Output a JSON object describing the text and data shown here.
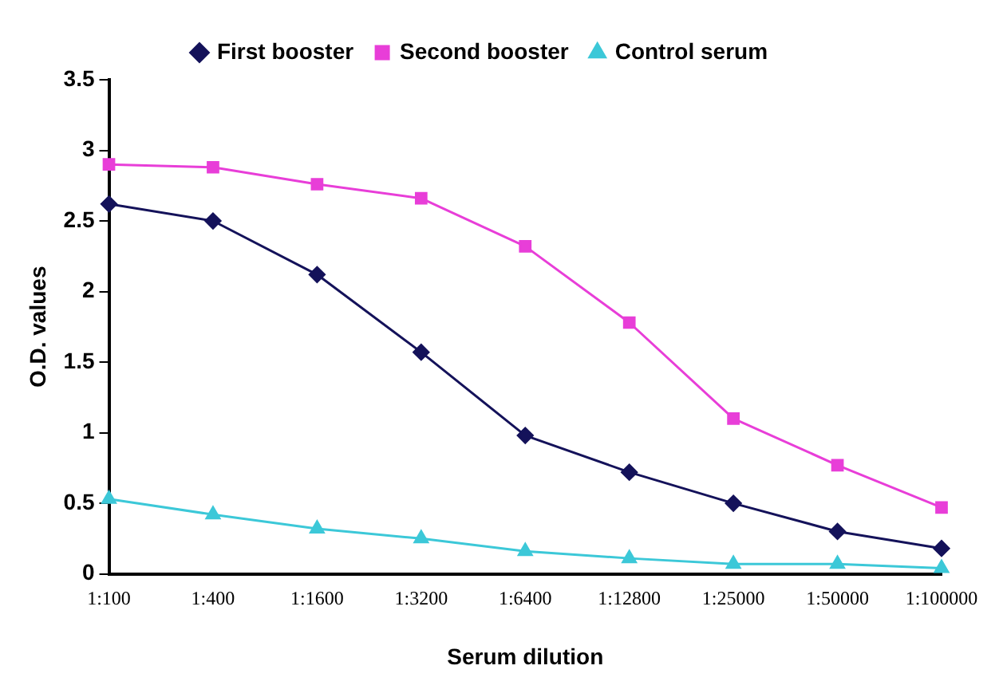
{
  "chart_data": {
    "type": "line",
    "xlabel": "Serum dilution",
    "ylabel": "O.D. values",
    "categories": [
      "1:100",
      "1:400",
      "1:1600",
      "1:3200",
      "1:6400",
      "1:12800",
      "1:25000",
      "1:50000",
      "1:100000"
    ],
    "series": [
      {
        "name": "First booster",
        "color": "#14125a",
        "marker": "diamond",
        "values": [
          2.62,
          2.5,
          2.12,
          1.57,
          0.98,
          0.72,
          0.5,
          0.3,
          0.18
        ]
      },
      {
        "name": "Second booster",
        "color": "#e83ed8",
        "marker": "square",
        "values": [
          2.9,
          2.88,
          2.76,
          2.66,
          2.32,
          1.78,
          1.1,
          0.77,
          0.47
        ]
      },
      {
        "name": "Control serum",
        "color": "#3cc8d8",
        "marker": "triangle",
        "values": [
          0.53,
          0.42,
          0.32,
          0.25,
          0.16,
          0.11,
          0.07,
          0.07,
          0.04
        ]
      }
    ],
    "ylim": [
      0,
      3.5
    ],
    "yticks": [
      0,
      0.5,
      1,
      1.5,
      2,
      2.5,
      3,
      3.5
    ],
    "grid": false,
    "legend": "top",
    "line_style": "solid"
  }
}
